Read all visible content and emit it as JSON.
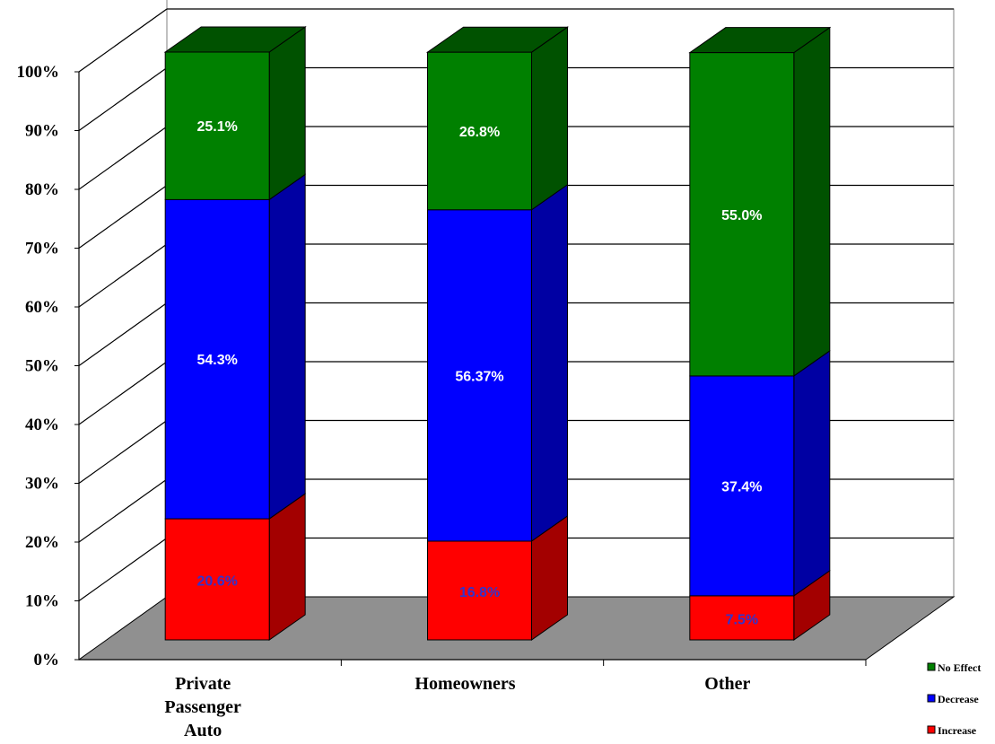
{
  "chart_data": {
    "type": "bar",
    "stacked": true,
    "three_d": true,
    "percent_axis": true,
    "categories": [
      "Private\nPassenger\nAuto",
      "Homeowners",
      "Other"
    ],
    "series": [
      {
        "name": "Increase",
        "color": "#ff0000",
        "side_color": "#a30000",
        "label_color": "#3333cc",
        "values": [
          20.6,
          16.8,
          7.5
        ],
        "labels": [
          "20.6%",
          "16.8%",
          "7.5%"
        ]
      },
      {
        "name": "Decrease",
        "color": "#0000ff",
        "side_color": "#0000a3",
        "label_color": "#ffffff",
        "values": [
          54.3,
          56.37,
          37.4
        ],
        "labels": [
          "54.3%",
          "56.37%",
          "37.4%"
        ]
      },
      {
        "name": "No Effect",
        "color": "#008000",
        "side_color": "#005200",
        "label_color": "#ffffff",
        "values": [
          25.1,
          26.8,
          55.0
        ],
        "labels": [
          "25.1%",
          "26.8%",
          "55.0%"
        ]
      }
    ],
    "ylim": [
      0,
      100
    ],
    "yticks": [
      "0%",
      "10%",
      "20%",
      "30%",
      "40%",
      "50%",
      "60%",
      "70%",
      "80%",
      "90%",
      "100%"
    ],
    "grid": true,
    "legend_position": "bottom-right",
    "legend_order": [
      "No Effect",
      "Decrease",
      "Increase"
    ],
    "title": "",
    "xlabel": "",
    "ylabel": ""
  }
}
